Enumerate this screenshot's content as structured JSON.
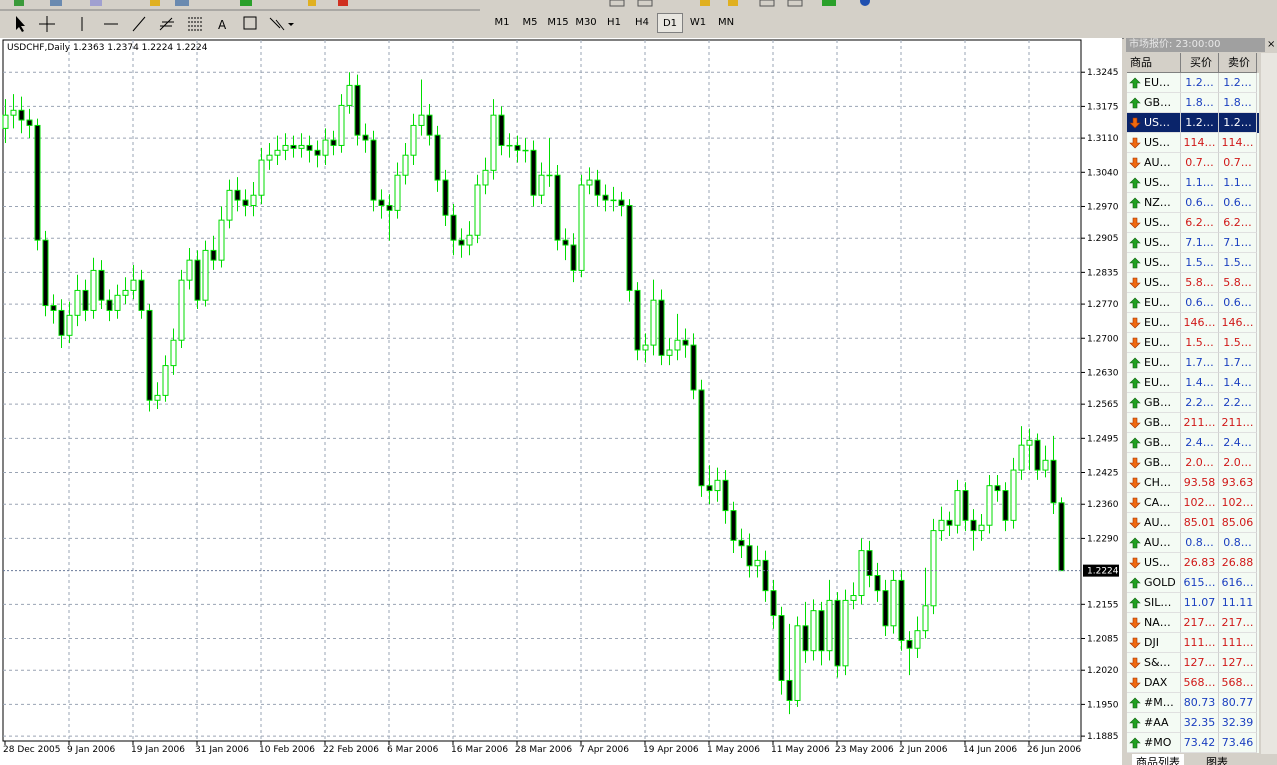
{
  "toolbar": {
    "timeframes": [
      "M1",
      "M5",
      "M15",
      "M30",
      "H1",
      "H4",
      "D1",
      "W1",
      "MN"
    ],
    "active_timeframe": "D1"
  },
  "chart_data": {
    "type": "candlestick",
    "title": "USDCHF,Daily  1.2363 1.2374 1.2224 1.2224",
    "wick_color": "#00dd00",
    "bull_fill": "#ffffff",
    "bear_fill": "#000000",
    "grid": true,
    "grid_color": "#9aa4b4",
    "ylim": [
      1.1875,
      1.3311
    ],
    "yticks": [
      1.3245,
      1.3175,
      {
        "value": 1.311,
        "label": "1.3110"
      },
      {
        "value": 1.304,
        "label": "1.3040"
      },
      {
        "value": 1.297,
        "label": "1.2970"
      },
      1.2905,
      1.2835,
      {
        "value": 1.277,
        "label": "1.2770"
      },
      {
        "value": 1.27,
        "label": "1.2700"
      },
      {
        "value": 1.263,
        "label": "1.2630"
      },
      1.2565,
      1.2495,
      1.2425,
      {
        "value": 1.236,
        "label": "1.2360"
      },
      {
        "value": 1.229,
        "label": "1.2290"
      },
      1.2155,
      1.2085,
      {
        "value": 1.202,
        "label": "1.2020"
      },
      {
        "value": 1.195,
        "label": "1.1950"
      },
      1.1885
    ],
    "last": 1.2224,
    "categories": [
      "28 Dec 2005",
      null,
      null,
      null,
      null,
      null,
      null,
      null,
      "9 Jan 2006",
      null,
      null,
      null,
      null,
      null,
      null,
      null,
      "19 Jan 2006",
      null,
      null,
      null,
      null,
      null,
      null,
      null,
      "31 Jan 2006",
      null,
      null,
      null,
      null,
      null,
      null,
      null,
      "10 Feb 2006",
      null,
      null,
      null,
      null,
      null,
      null,
      null,
      "22 Feb 2006",
      null,
      null,
      null,
      null,
      null,
      null,
      null,
      "6 Mar 2006",
      null,
      null,
      null,
      null,
      null,
      null,
      null,
      "16 Mar 2006",
      null,
      null,
      null,
      null,
      null,
      null,
      null,
      "28 Mar 2006",
      null,
      null,
      null,
      null,
      null,
      null,
      null,
      "7 Apr 2006",
      null,
      null,
      null,
      null,
      null,
      null,
      null,
      "19 Apr 2006",
      null,
      null,
      null,
      null,
      null,
      null,
      null,
      "1 May 2006",
      null,
      null,
      null,
      null,
      null,
      null,
      null,
      "11 May 2006",
      null,
      null,
      null,
      null,
      null,
      null,
      null,
      "23 May 2006",
      null,
      null,
      null,
      null,
      null,
      null,
      null,
      "2 Jun 2006",
      null,
      null,
      null,
      null,
      null,
      null,
      null,
      "14 Jun 2006",
      null,
      null,
      null,
      null,
      null,
      null,
      null,
      "26 Jun 2006",
      null,
      null,
      null,
      null
    ],
    "open": [
      1.313,
      1.3157,
      1.3167,
      1.3147,
      1.3136,
      1.2901,
      1.2767,
      1.2757,
      1.2706,
      1.2747,
      1.2798,
      1.2757,
      1.2839,
      1.2778,
      1.2757,
      1.2788,
      1.2798,
      1.2819,
      1.2757,
      1.2573,
      1.2583,
      1.2644,
      1.2696,
      1.2819,
      1.286,
      1.2778,
      1.288,
      1.286,
      1.2942,
      1.3003,
      1.2983,
      1.2972,
      1.2993,
      1.3065,
      1.3075,
      1.3085,
      1.3095,
      1.3089,
      1.3095,
      1.3085,
      1.3075,
      1.3106,
      1.3095,
      1.3177,
      1.3218,
      1.3116,
      1.3106,
      1.2983,
      1.2972,
      1.2962,
      1.3034,
      1.3075,
      1.3136,
      1.3157,
      1.3116,
      1.3024,
      1.2952,
      1.2901,
      1.2891,
      1.2911,
      1.3014,
      1.3044,
      1.3157,
      1.3095,
      1.3095,
      1.3085,
      1.3085,
      1.2993,
      1.3034,
      1.3034,
      1.2901,
      1.2891,
      1.2839,
      1.3014,
      1.3024,
      1.2993,
      1.2983,
      1.2983,
      1.2972,
      1.2798,
      1.2676,
      1.2686,
      1.2778,
      1.2665,
      1.2676,
      1.2696,
      1.2686,
      1.2594,
      1.2398,
      1.2388,
      1.2409,
      1.2347,
      1.2286,
      1.2275,
      1.2234,
      1.2245,
      1.2183,
      1.2132,
      1.1999,
      1.1958,
      1.2111,
      1.206,
      1.2142,
      1.206,
      1.2163,
      1.2029,
      1.2163,
      1.2173,
      1.2265,
      1.2214,
      1.2183,
      1.2111,
      1.2204,
      1.2081,
      1.2065,
      1.2101,
      1.2152,
      1.2306,
      1.2327,
      1.2317,
      1.2388,
      1.2327,
      1.2306,
      1.2317,
      1.2398,
      1.2388,
      1.2327,
      1.243,
      1.2481,
      1.2491,
      1.243,
      1.245,
      1.2363
    ],
    "high": [
      1.319,
      1.32,
      1.3195,
      1.317,
      1.315,
      1.292,
      1.279,
      1.278,
      1.2775,
      1.283,
      1.282,
      1.2865,
      1.286,
      1.28,
      1.281,
      1.2825,
      1.285,
      1.284,
      1.277,
      1.261,
      1.2665,
      1.272,
      1.284,
      1.2885,
      1.288,
      1.29,
      1.291,
      1.297,
      1.3025,
      1.303,
      1.3005,
      1.302,
      1.309,
      1.31,
      1.3115,
      1.312,
      1.3115,
      1.312,
      1.3115,
      1.3105,
      1.313,
      1.3125,
      1.32,
      1.3245,
      1.324,
      1.314,
      1.3125,
      1.3005,
      1.2995,
      1.306,
      1.31,
      1.316,
      1.323,
      1.318,
      1.3135,
      1.3045,
      1.2975,
      1.2925,
      1.294,
      1.3035,
      1.307,
      1.319,
      1.3175,
      1.312,
      1.3115,
      1.311,
      1.3105,
      1.306,
      1.311,
      1.3055,
      1.2925,
      1.2915,
      1.3035,
      1.305,
      1.3045,
      1.3015,
      1.301,
      1.3,
      1.2985,
      1.2815,
      1.271,
      1.282,
      1.28,
      1.27,
      1.275,
      1.272,
      1.271,
      1.2615,
      1.244,
      1.2435,
      1.243,
      1.2365,
      1.231,
      1.23,
      1.2275,
      1.2265,
      1.2205,
      1.215,
      1.2115,
      1.213,
      1.216,
      1.2165,
      1.216,
      1.2205,
      1.218,
      1.2185,
      1.22,
      1.229,
      1.2285,
      1.224,
      1.2205,
      1.2225,
      1.2225,
      1.21,
      1.213,
      1.223,
      1.233,
      1.2355,
      1.2345,
      1.241,
      1.2405,
      1.235,
      1.234,
      1.242,
      1.242,
      1.2405,
      1.2455,
      1.252,
      1.2515,
      1.2505,
      1.248,
      1.25,
      1.2374
    ],
    "low": [
      1.31,
      1.313,
      1.312,
      1.311,
      1.288,
      1.2745,
      1.273,
      1.268,
      1.269,
      1.2725,
      1.2735,
      1.274,
      1.276,
      1.2735,
      1.274,
      1.277,
      1.278,
      1.274,
      1.255,
      1.2555,
      1.257,
      1.2625,
      1.268,
      1.28,
      1.276,
      1.2765,
      1.284,
      1.2845,
      1.2925,
      1.296,
      1.295,
      1.295,
      1.2975,
      1.3045,
      1.3055,
      1.3065,
      1.307,
      1.307,
      1.306,
      1.305,
      1.3055,
      1.3075,
      1.308,
      1.316,
      1.3095,
      1.308,
      1.296,
      1.2945,
      1.29,
      1.2945,
      1.3015,
      1.3055,
      1.3115,
      1.3095,
      1.3,
      1.293,
      1.287,
      1.2865,
      1.287,
      1.2895,
      1.2995,
      1.3025,
      1.3075,
      1.307,
      1.306,
      1.306,
      1.297,
      1.2975,
      1.301,
      1.288,
      1.286,
      1.2815,
      1.2825,
      1.2995,
      1.297,
      1.296,
      1.296,
      1.295,
      1.2775,
      1.2655,
      1.265,
      1.2665,
      1.2645,
      1.2645,
      1.2655,
      1.266,
      1.2575,
      1.2375,
      1.236,
      1.2365,
      1.232,
      1.226,
      1.225,
      1.221,
      1.221,
      1.216,
      1.2105,
      1.197,
      1.193,
      1.1945,
      1.2035,
      1.204,
      1.203,
      1.204,
      1.2005,
      1.201,
      1.2145,
      1.2155,
      1.219,
      1.216,
      1.209,
      1.2095,
      1.206,
      1.201,
      1.2045,
      1.2085,
      1.2135,
      1.2285,
      1.2295,
      1.23,
      1.2305,
      1.2265,
      1.2285,
      1.23,
      1.2365,
      1.2305,
      1.231,
      1.241,
      1.243,
      1.241,
      1.2415,
      1.234,
      1.2224
    ],
    "close": [
      1.3157,
      1.3167,
      1.3147,
      1.3136,
      1.2901,
      1.2767,
      1.2757,
      1.2706,
      1.2747,
      1.2798,
      1.2757,
      1.2839,
      1.2778,
      1.2757,
      1.2788,
      1.2798,
      1.2819,
      1.2757,
      1.2573,
      1.2583,
      1.2644,
      1.2696,
      1.2819,
      1.286,
      1.2778,
      1.288,
      1.286,
      1.2942,
      1.3003,
      1.2983,
      1.2972,
      1.2993,
      1.3065,
      1.3075,
      1.3085,
      1.3095,
      1.3089,
      1.3095,
      1.3085,
      1.3075,
      1.3106,
      1.3095,
      1.3177,
      1.3218,
      1.3116,
      1.3106,
      1.2983,
      1.2972,
      1.2962,
      1.3034,
      1.3075,
      1.3136,
      1.3157,
      1.3116,
      1.3024,
      1.2952,
      1.2901,
      1.2891,
      1.2911,
      1.3014,
      1.3044,
      1.3157,
      1.3095,
      1.3095,
      1.3085,
      1.3085,
      1.2993,
      1.3034,
      1.3034,
      1.2901,
      1.2891,
      1.2839,
      1.3014,
      1.3024,
      1.2993,
      1.2983,
      1.2983,
      1.2972,
      1.2798,
      1.2676,
      1.2686,
      1.2778,
      1.2665,
      1.2676,
      1.2696,
      1.2686,
      1.2594,
      1.2398,
      1.2388,
      1.2409,
      1.2347,
      1.2286,
      1.2275,
      1.2234,
      1.2245,
      1.2183,
      1.2132,
      1.1999,
      1.1958,
      1.2111,
      1.206,
      1.2142,
      1.206,
      1.2163,
      1.2029,
      1.2163,
      1.2173,
      1.2265,
      1.2214,
      1.2183,
      1.2111,
      1.2204,
      1.2081,
      1.2065,
      1.2101,
      1.2152,
      1.2306,
      1.2327,
      1.2317,
      1.2388,
      1.2327,
      1.2306,
      1.2317,
      1.2398,
      1.2388,
      1.2327,
      1.243,
      1.2481,
      1.2491,
      1.243,
      1.245,
      1.2363,
      1.2224
    ]
  },
  "market_watch": {
    "title": "市场报价: 23:00:00",
    "columns": [
      "商品",
      "买价",
      "卖价"
    ],
    "selected_row": 2,
    "up_color": "#1a3ec0",
    "down_color": "#d01818",
    "rows": [
      {
        "symbol": "EU…",
        "bid": "1.2…",
        "ask": "1.2…",
        "dir": "up"
      },
      {
        "symbol": "GB…",
        "bid": "1.8…",
        "ask": "1.8…",
        "dir": "up"
      },
      {
        "symbol": "US…",
        "bid": "1.2…",
        "ask": "1.2…",
        "dir": "down"
      },
      {
        "symbol": "US…",
        "bid": "114…",
        "ask": "114…",
        "dir": "down"
      },
      {
        "symbol": "AU…",
        "bid": "0.7…",
        "ask": "0.7…",
        "dir": "down"
      },
      {
        "symbol": "US…",
        "bid": "1.1…",
        "ask": "1.1…",
        "dir": "up"
      },
      {
        "symbol": "NZ…",
        "bid": "0.6…",
        "ask": "0.6…",
        "dir": "up"
      },
      {
        "symbol": "US…",
        "bid": "6.2…",
        "ask": "6.2…",
        "dir": "down"
      },
      {
        "symbol": "US…",
        "bid": "7.1…",
        "ask": "7.1…",
        "dir": "up"
      },
      {
        "symbol": "US…",
        "bid": "1.5…",
        "ask": "1.5…",
        "dir": "up"
      },
      {
        "symbol": "US…",
        "bid": "5.8…",
        "ask": "5.8…",
        "dir": "down"
      },
      {
        "symbol": "EU…",
        "bid": "0.6…",
        "ask": "0.6…",
        "dir": "up"
      },
      {
        "symbol": "EU…",
        "bid": "146…",
        "ask": "146…",
        "dir": "down"
      },
      {
        "symbol": "EU…",
        "bid": "1.5…",
        "ask": "1.5…",
        "dir": "down"
      },
      {
        "symbol": "EU…",
        "bid": "1.7…",
        "ask": "1.7…",
        "dir": "up"
      },
      {
        "symbol": "EU…",
        "bid": "1.4…",
        "ask": "1.4…",
        "dir": "up"
      },
      {
        "symbol": "GB…",
        "bid": "2.2…",
        "ask": "2.2…",
        "dir": "up"
      },
      {
        "symbol": "GB…",
        "bid": "211…",
        "ask": "211…",
        "dir": "down"
      },
      {
        "symbol": "GB…",
        "bid": "2.4…",
        "ask": "2.4…",
        "dir": "up"
      },
      {
        "symbol": "GB…",
        "bid": "2.0…",
        "ask": "2.0…",
        "dir": "down"
      },
      {
        "symbol": "CH…",
        "bid": "93.58",
        "ask": "93.63",
        "dir": "down"
      },
      {
        "symbol": "CA…",
        "bid": "102…",
        "ask": "102…",
        "dir": "down"
      },
      {
        "symbol": "AU…",
        "bid": "85.01",
        "ask": "85.06",
        "dir": "down"
      },
      {
        "symbol": "AU…",
        "bid": "0.8…",
        "ask": "0.8…",
        "dir": "up"
      },
      {
        "symbol": "US…",
        "bid": "26.83",
        "ask": "26.88",
        "dir": "down"
      },
      {
        "symbol": "GOLD",
        "bid": "615…",
        "ask": "616…",
        "dir": "up"
      },
      {
        "symbol": "SIL…",
        "bid": "11.07",
        "ask": "11.11",
        "dir": "up"
      },
      {
        "symbol": "NA…",
        "bid": "217…",
        "ask": "217…",
        "dir": "down"
      },
      {
        "symbol": "DJI",
        "bid": "111…",
        "ask": "111…",
        "dir": "down"
      },
      {
        "symbol": "S&…",
        "bid": "127…",
        "ask": "127…",
        "dir": "down"
      },
      {
        "symbol": "DAX",
        "bid": "568…",
        "ask": "568…",
        "dir": "down"
      },
      {
        "symbol": "#M…",
        "bid": "80.73",
        "ask": "80.77",
        "dir": "up"
      },
      {
        "symbol": "#AA",
        "bid": "32.35",
        "ask": "32.39",
        "dir": "up"
      },
      {
        "symbol": "#MO",
        "bid": "73.42",
        "ask": "73.46",
        "dir": "up"
      }
    ],
    "tabs": [
      "商品列表",
      "图表"
    ]
  }
}
